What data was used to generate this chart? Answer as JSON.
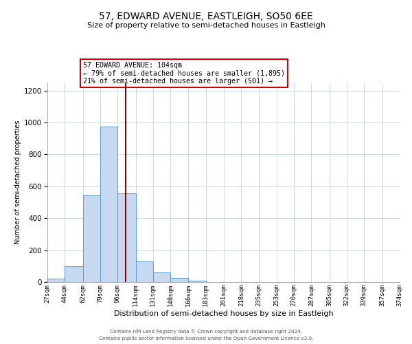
{
  "title": "57, EDWARD AVENUE, EASTLEIGH, SO50 6EE",
  "subtitle": "Size of property relative to semi-detached houses in Eastleigh",
  "xlabel": "Distribution of semi-detached houses by size in Eastleigh",
  "ylabel": "Number of semi-detached properties",
  "bin_edges": [
    27,
    44,
    62,
    79,
    96,
    114,
    131,
    148,
    166,
    183,
    201,
    218,
    235,
    253,
    270,
    287,
    305,
    322,
    339,
    357,
    374
  ],
  "bin_labels": [
    "27sqm",
    "44sqm",
    "62sqm",
    "79sqm",
    "96sqm",
    "114sqm",
    "131sqm",
    "148sqm",
    "166sqm",
    "183sqm",
    "201sqm",
    "218sqm",
    "235sqm",
    "253sqm",
    "270sqm",
    "287sqm",
    "305sqm",
    "322sqm",
    "339sqm",
    "357sqm",
    "374sqm"
  ],
  "counts": [
    20,
    100,
    545,
    975,
    555,
    130,
    62,
    28,
    10,
    0,
    0,
    0,
    0,
    0,
    0,
    0,
    0,
    0,
    0,
    0
  ],
  "bar_color": "#c6d9f1",
  "bar_edge_color": "#5b9bd5",
  "property_size": 104,
  "vline_color": "#8b0000",
  "annotation_text": "57 EDWARD AVENUE: 104sqm\n← 79% of semi-detached houses are smaller (1,895)\n21% of semi-detached houses are larger (501) →",
  "annotation_box_color": "#ffffff",
  "annotation_box_edge": "#cc0000",
  "ylim": [
    0,
    1250
  ],
  "yticks": [
    0,
    200,
    400,
    600,
    800,
    1000,
    1200
  ],
  "footer_line1": "Contains HM Land Registry data © Crown copyright and database right 2024.",
  "footer_line2": "Contains public sector information licensed under the Open Government Licence v3.0.",
  "background_color": "#ffffff",
  "grid_color": "#c8d8e8"
}
